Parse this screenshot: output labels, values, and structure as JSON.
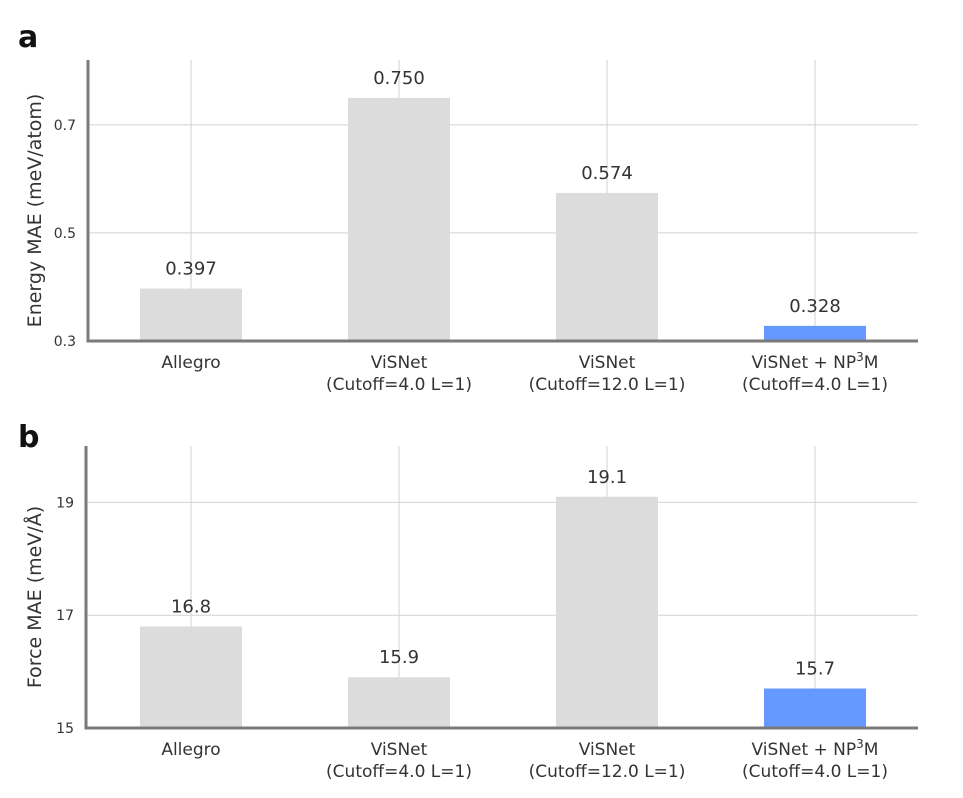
{
  "figure": {
    "colors": {
      "default_bar": "#dcdcdc",
      "highlight_bar": "#6699ff",
      "grid": "#d2d2d2",
      "axis": "#7a7a7a"
    }
  },
  "chart_data": [
    {
      "type": "bar",
      "panel": "a",
      "ylabel": "Energy MAE (meV/atom)",
      "ylim": [
        0.3,
        0.82
      ],
      "yticks": [
        0.3,
        0.5,
        0.7
      ],
      "ytick_labels": [
        "0.3",
        "0.5",
        "0.7"
      ],
      "grid": true,
      "categories": [
        {
          "line1": "Allegro",
          "line2": ""
        },
        {
          "line1": "ViSNet",
          "line2": "(Cutoff=4.0 L=1)"
        },
        {
          "line1": "ViSNet",
          "line2": "(Cutoff=12.0 L=1)"
        },
        {
          "line1": "ViSNet + NP",
          "sup": "3",
          "line1_end": "M",
          "line2": "(Cutoff=4.0 L=1)"
        }
      ],
      "values": [
        0.397,
        0.75,
        0.574,
        0.328
      ],
      "value_labels": [
        "0.397",
        "0.750",
        "0.574",
        "0.328"
      ],
      "highlight": [
        false,
        false,
        false,
        true
      ]
    },
    {
      "type": "bar",
      "panel": "b",
      "ylabel": "Force MAE (meV/Å)",
      "ylim": [
        15,
        20.0
      ],
      "yticks": [
        15,
        17,
        19
      ],
      "ytick_labels": [
        "15",
        "17",
        "19"
      ],
      "grid": true,
      "categories": [
        {
          "line1": "Allegro",
          "line2": ""
        },
        {
          "line1": "ViSNet",
          "line2": "(Cutoff=4.0 L=1)"
        },
        {
          "line1": "ViSNet",
          "line2": "(Cutoff=12.0 L=1)"
        },
        {
          "line1": "ViSNet + NP",
          "sup": "3",
          "line1_end": "M",
          "line2": "(Cutoff=4.0 L=1)"
        }
      ],
      "values": [
        16.8,
        15.9,
        19.1,
        15.7
      ],
      "value_labels": [
        "16.8",
        "15.9",
        "19.1",
        "15.7"
      ],
      "highlight": [
        false,
        false,
        false,
        true
      ]
    }
  ]
}
